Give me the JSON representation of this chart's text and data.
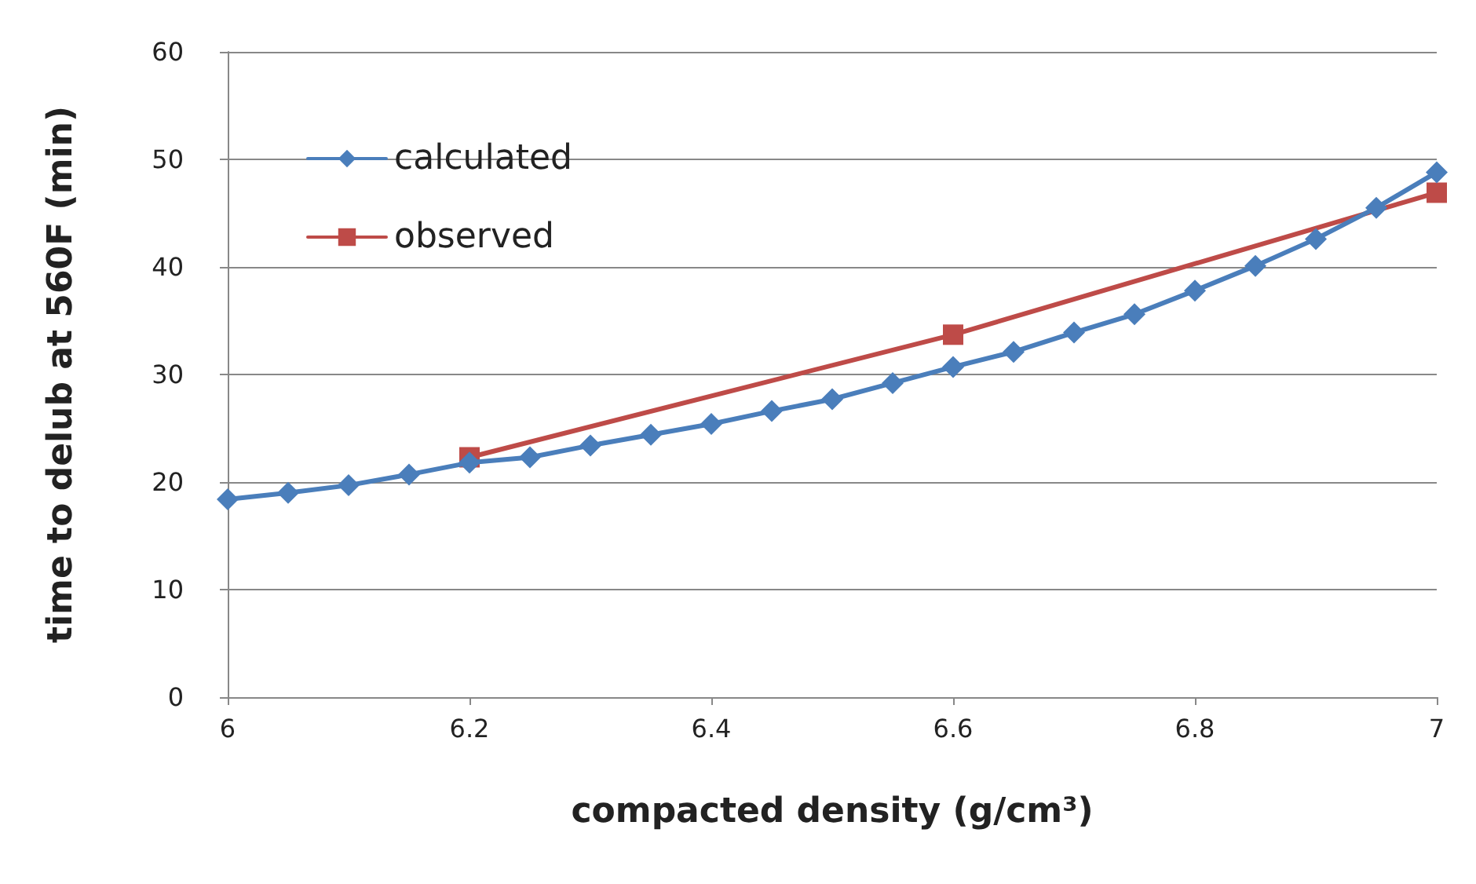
{
  "chart_data": {
    "type": "line",
    "xlabel": "compacted density (g/cm³)",
    "ylabel": "time to delub at 560F (min)",
    "xlim": [
      6,
      7
    ],
    "xticks": [
      6,
      6.2,
      6.4,
      6.6,
      6.8,
      7
    ],
    "ylim": [
      0,
      60
    ],
    "yticks": [
      0,
      10,
      20,
      30,
      40,
      50,
      60
    ],
    "grid": "y",
    "legend": "top left",
    "series": [
      {
        "name": "calculated",
        "color": "#4a7ebb",
        "marker": "diamond",
        "x": [
          6,
          6.05,
          6.1,
          6.15,
          6.2,
          6.25,
          6.3,
          6.35,
          6.4,
          6.45,
          6.5,
          6.55,
          6.6,
          6.65,
          6.7,
          6.75,
          6.8,
          6.85,
          6.9,
          6.95,
          7
        ],
        "values": [
          18.4,
          19.0,
          19.7,
          20.7,
          21.8,
          22.3,
          23.4,
          24.4,
          25.4,
          26.6,
          27.7,
          29.2,
          30.7,
          32.1,
          33.9,
          35.6,
          37.8,
          40.1,
          42.6,
          45.5,
          48.8
        ]
      },
      {
        "name": "observed",
        "color": "#be4b48",
        "marker": "square",
        "x": [
          6.2,
          6.6,
          7
        ],
        "values": [
          22.3,
          33.7,
          46.9
        ]
      }
    ]
  }
}
